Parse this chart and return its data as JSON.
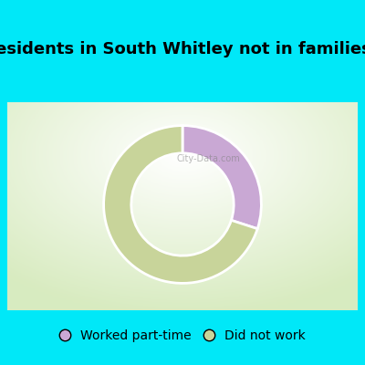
{
  "title": "Breakdown of poor residents in South Whitley not in families by work experience",
  "slices": [
    {
      "label": "Worked part-time",
      "value": 30,
      "color": "#c9a8d4"
    },
    {
      "label": "Did not work",
      "value": 70,
      "color": "#c8d49a"
    }
  ],
  "background_outer": "#00e8f8",
  "title_fontsize": 13,
  "title_color": "#000000",
  "legend_fontsize": 10,
  "donut_width": 0.35,
  "start_angle": 90
}
